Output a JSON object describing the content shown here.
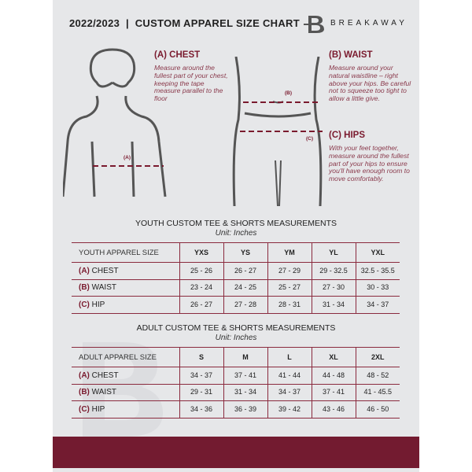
{
  "header": {
    "title": "2022/2023  |  CUSTOM APPAREL SIZE CHART",
    "brand": "BREAKAWAY",
    "logo_letter": "B"
  },
  "guide": {
    "chest": {
      "heading": "(A) CHEST",
      "text": "Measure around the fullest part of your chest, keeping the tape measure parallel to the floor",
      "tag": "(A)"
    },
    "waist": {
      "heading": "(B) WAIST",
      "text": "Measure around your natural waistline – right above your hips. Be careful not to squeeze too tight to allow a little give.",
      "tag": "(B)"
    },
    "hips": {
      "heading": "(C) HIPS",
      "text": "With your feet together, measure around the fullest part of your hips to ensure you'll have enough room to move comfortably.",
      "tag": "(C)"
    }
  },
  "youth": {
    "title": "YOUTH CUSTOM TEE & SHORTS MEASUREMENTS",
    "unit": "Unit: Inches",
    "header": "YOUTH APPAREL SIZE",
    "sizes": [
      "YXS",
      "YS",
      "YM",
      "YL",
      "YXL"
    ],
    "rows": [
      {
        "code": "(A)",
        "name": "CHEST",
        "values": [
          "25 - 26",
          "26 - 27",
          "27 - 29",
          "29 - 32.5",
          "32.5 - 35.5"
        ]
      },
      {
        "code": "(B)",
        "name": "WAIST",
        "values": [
          "23 - 24",
          "24 - 25",
          "25 - 27",
          "27 - 30",
          "30 - 33"
        ]
      },
      {
        "code": "(C)",
        "name": "HIP",
        "values": [
          "26 - 27",
          "27 - 28",
          "28 - 31",
          "31 - 34",
          "34 - 37"
        ]
      }
    ]
  },
  "adult": {
    "title": "ADULT CUSTOM TEE & SHORTS MEASUREMENTS",
    "unit": "Unit: Inches",
    "header": "ADULT APPAREL SIZE",
    "sizes": [
      "S",
      "M",
      "L",
      "XL",
      "2XL"
    ],
    "rows": [
      {
        "code": "(A)",
        "name": "CHEST",
        "values": [
          "34 - 37",
          "37 - 41",
          "41 - 44",
          "44 - 48",
          "48 - 52"
        ]
      },
      {
        "code": "(B)",
        "name": "WAIST",
        "values": [
          "29 - 31",
          "31 - 34",
          "34 - 37",
          "37 - 41",
          "41 - 45.5"
        ]
      },
      {
        "code": "(C)",
        "name": "HIP",
        "values": [
          "34 - 36",
          "36 - 39",
          "39 - 42",
          "43 - 46",
          "46 - 50"
        ]
      }
    ]
  },
  "colors": {
    "accent": "#731b30",
    "panel": "#e6e7e9"
  }
}
